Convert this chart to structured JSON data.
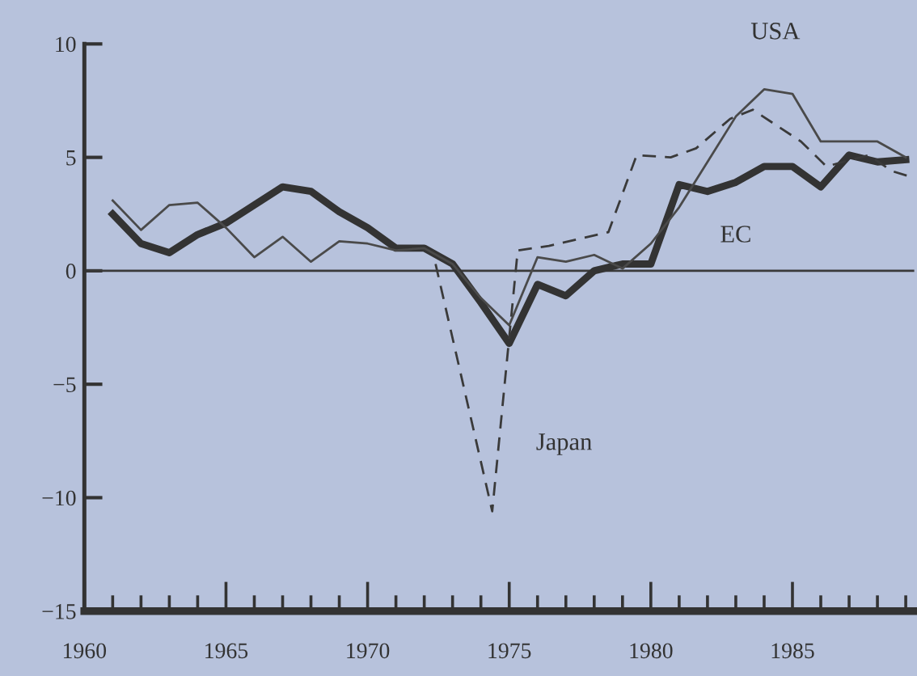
{
  "chart_data": {
    "type": "line",
    "x": [
      1961,
      1962,
      1963,
      1964,
      1965,
      1966,
      1967,
      1968,
      1969,
      1970,
      1971,
      1972,
      1973,
      1974,
      1975,
      1976,
      1977,
      1978,
      1979,
      1980,
      1981,
      1982,
      1983,
      1984,
      1985,
      1986,
      1987,
      1988,
      1989
    ],
    "series": [
      {
        "name": "EC",
        "color": "#333333",
        "values": [
          2.5,
          1.2,
          0.8,
          1.6,
          2.1,
          2.9,
          3.7,
          3.5,
          2.6,
          1.9,
          1.0,
          1.0,
          0.3,
          -1.4,
          -3.2,
          -0.6,
          -1.1,
          0.0,
          0.3,
          0.3,
          3.8,
          3.5,
          3.9,
          4.6,
          4.6,
          3.7,
          5.1,
          4.8,
          4.9
        ]
      },
      {
        "name": "USA",
        "color": "#4a4a4a",
        "values": [
          3.1,
          1.8,
          2.9,
          3.0,
          1.9,
          0.6,
          1.5,
          0.4,
          1.3,
          1.2,
          0.9,
          1.0,
          0.3,
          -1.2,
          -2.4,
          0.6,
          0.4,
          0.7,
          0.1,
          1.2,
          2.8,
          4.8,
          6.8,
          8.0,
          7.8,
          5.7,
          5.7,
          5.7,
          5.0
        ]
      },
      {
        "name": "Japan",
        "color": "#3a3a3a",
        "line_style": "dashed",
        "x": [
          1972.4,
          1974.4,
          1975.3,
          1976.4,
          1978.5,
          1979.5,
          1980.7,
          1981.6,
          1982.8,
          1983.6,
          1985.3,
          1986.2,
          1987.7,
          1988.5,
          1989.3
        ],
        "values": [
          0.3,
          -10.6,
          0.9,
          1.1,
          1.7,
          5.1,
          5.0,
          5.4,
          6.7,
          7.1,
          5.7,
          4.6,
          5.1,
          4.4,
          4.1
        ]
      }
    ],
    "xlim": [
      1960,
      1989.3
    ],
    "ylim": [
      -15,
      10
    ],
    "xticks": [
      1960,
      {
        "value": 1961,
        "label": null
      },
      {
        "value": 1962,
        "label": null
      },
      {
        "value": 1963,
        "label": null
      },
      {
        "value": 1964,
        "label": null
      },
      1965,
      {
        "value": 1966,
        "label": null
      },
      {
        "value": 1967,
        "label": null
      },
      {
        "value": 1968,
        "label": null
      },
      {
        "value": 1969,
        "label": null
      },
      1970,
      {
        "value": 1971,
        "label": null
      },
      {
        "value": 1972,
        "label": null
      },
      {
        "value": 1973,
        "label": null
      },
      {
        "value": 1974,
        "label": null
      },
      1975,
      {
        "value": 1976,
        "label": null
      },
      {
        "value": 1977,
        "label": null
      },
      {
        "value": 1978,
        "label": null
      },
      {
        "value": 1979,
        "label": null
      },
      1980,
      {
        "value": 1981,
        "label": null
      },
      {
        "value": 1982,
        "label": null
      },
      {
        "value": 1983,
        "label": null
      },
      {
        "value": 1984,
        "label": null
      },
      1985,
      {
        "value": 1986,
        "label": null
      },
      {
        "value": 1987,
        "label": null
      },
      {
        "value": 1988,
        "label": null
      },
      {
        "value": 1989,
        "label": null
      }
    ],
    "yticks": [
      {
        "value": 10,
        "label": "10"
      },
      {
        "value": 5,
        "label": "5"
      },
      {
        "value": 0,
        "label": "0"
      },
      {
        "value": -5,
        "label": "−5"
      },
      {
        "value": -10,
        "label": "−10"
      },
      {
        "value": -15,
        "label": "−15"
      }
    ],
    "ref_lines": [
      {
        "axis": "y",
        "value": 0,
        "color": "#3a3a3a"
      }
    ],
    "grid": false,
    "legend": false,
    "marker": "none"
  }
}
